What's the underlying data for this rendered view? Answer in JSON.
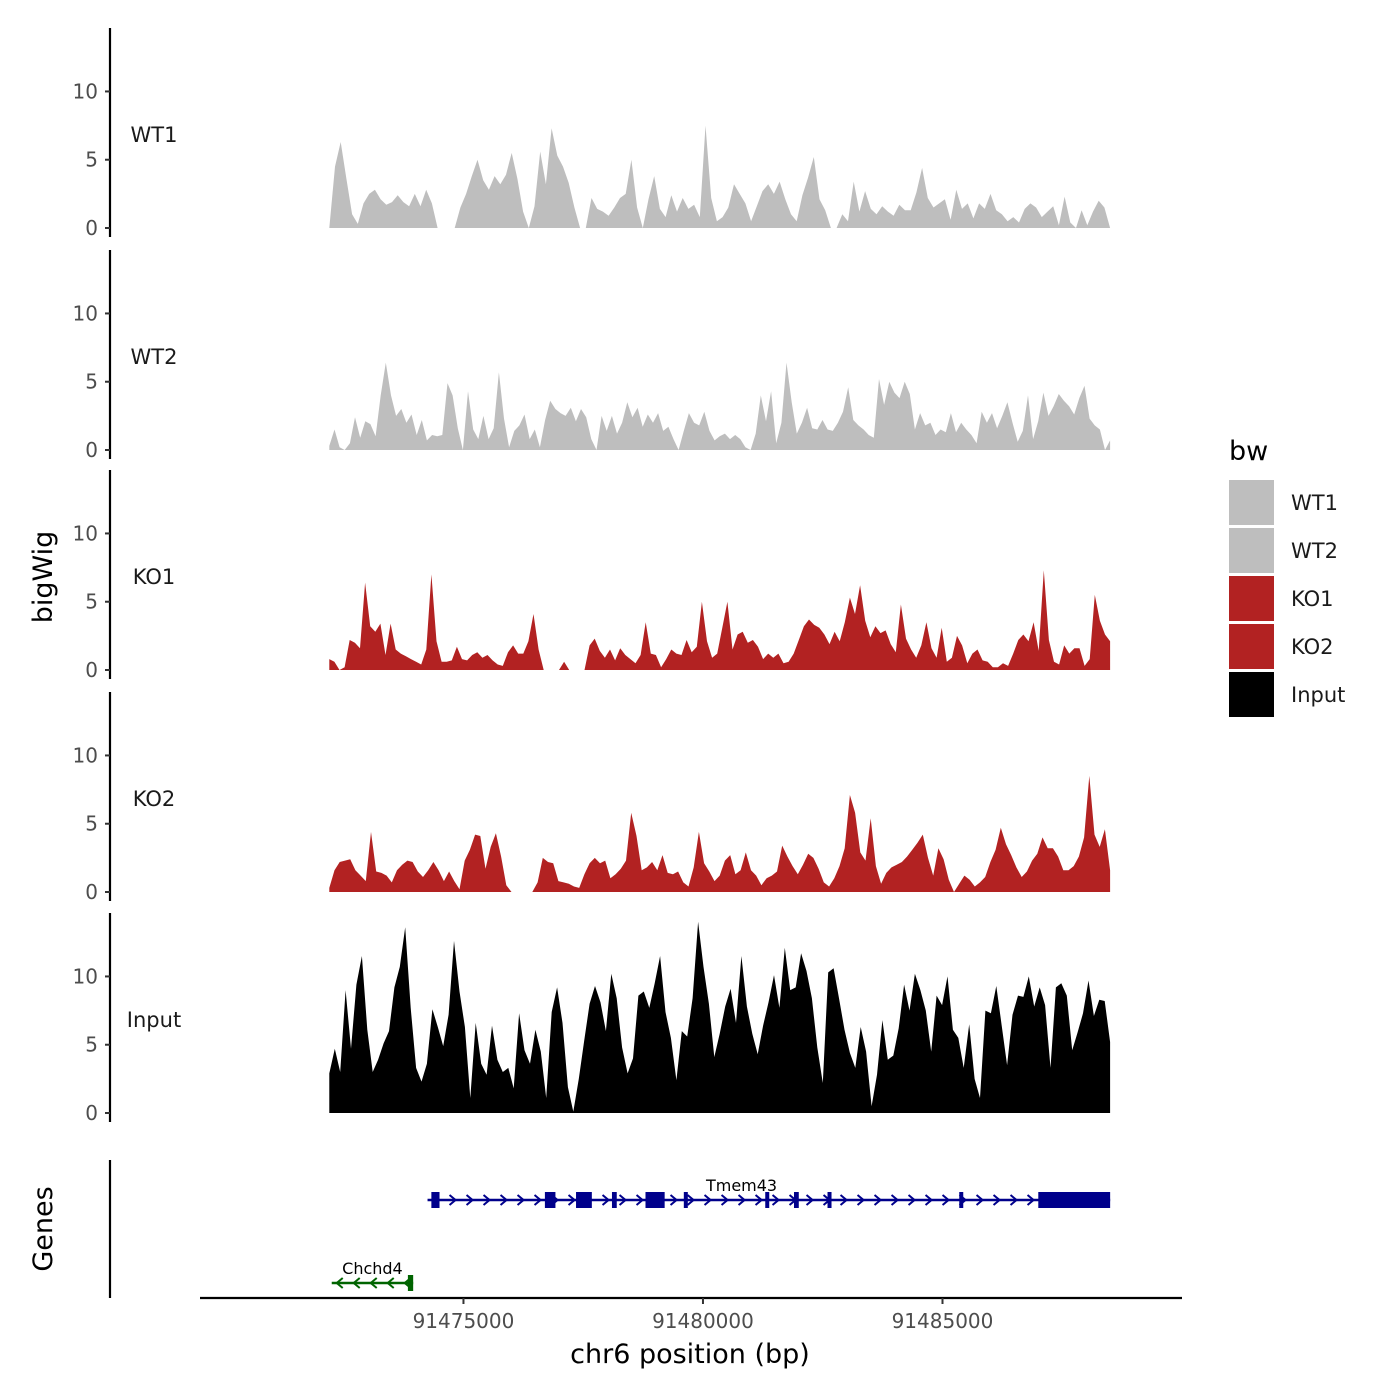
{
  "chart_data": {
    "type": "area",
    "y_axis_title": "bigWig",
    "x_axis_title": "chr6 position (bp)",
    "genes_axis_title": "Genes",
    "legend_title": "bw",
    "ylim": [
      0,
      14.5
    ],
    "y_ticks": [
      0,
      5,
      10
    ],
    "xlim": [
      91469500,
      91490000
    ],
    "x_ticks": [
      91475000,
      91480000,
      91485000
    ],
    "track_x_range": [
      91472200,
      91488500
    ],
    "series": [
      {
        "name": "WT1",
        "color": "#BEBEBE",
        "values": [
          0,
          4.5,
          6.3,
          3.6,
          1,
          0.3,
          1.8,
          2.5,
          2.8,
          2.1,
          1.7,
          1.9,
          2.4,
          1.9,
          1.6,
          2.5,
          1.6,
          2.8,
          1.8,
          0,
          0,
          0,
          0,
          1.5,
          2.5,
          3.8,
          5,
          3.5,
          2.8,
          3.8,
          3.2,
          3.9,
          5.5,
          3.6,
          1.2,
          0,
          1.6,
          5.6,
          3.2,
          7.3,
          5.3,
          4.5,
          3.3,
          1.5,
          0,
          0,
          2.2,
          1.4,
          1.2,
          0.9,
          1.5,
          2.2,
          2.5,
          5,
          1.5,
          0,
          2.1,
          3.8,
          1.4,
          0.8,
          2.4,
          1.2,
          2.2,
          1.4,
          1.7,
          0.8,
          7.5,
          2.2,
          0.5,
          0.8,
          1.5,
          3.2,
          2.5,
          1.8,
          0.5,
          1.6,
          2.7,
          3.2,
          2.5,
          3.4,
          2.1,
          1,
          0.5,
          2.4,
          3.7,
          5.2,
          2.1,
          1.3,
          0,
          0,
          1,
          0.5,
          3.4,
          1.2,
          2.7,
          1.4,
          1,
          1.6,
          1.2,
          0.9,
          1.7,
          1.3,
          1.3,
          2.6,
          4.4,
          2.2,
          1.5,
          1.8,
          2.1,
          0.6,
          2.8,
          1.4,
          1.8,
          0.7,
          1.8,
          1.4,
          2.5,
          1.3,
          1,
          0.5,
          0.8,
          0.4,
          1.4,
          1.8,
          1.5,
          0.8,
          1.2,
          1.6,
          0.2,
          2.3,
          0.4,
          0,
          1.3,
          0.2,
          1.2,
          2,
          1.5,
          0
        ]
      },
      {
        "name": "WT2",
        "color": "#BEBEBE",
        "values": [
          0.3,
          1.5,
          0.2,
          0,
          0.5,
          2.4,
          0.9,
          2.1,
          1.9,
          1,
          4,
          6.4,
          4,
          2.5,
          3,
          2,
          2.6,
          1.1,
          2.2,
          0.7,
          1.1,
          1,
          1.1,
          4.9,
          4,
          1.6,
          0,
          4.3,
          1.5,
          0.8,
          2.5,
          0.8,
          1.6,
          5.7,
          2.3,
          0.2,
          1.4,
          1.8,
          2.6,
          0.8,
          1.5,
          0.2,
          2.2,
          3.6,
          3,
          2.7,
          2.5,
          3.1,
          2.1,
          3,
          2.4,
          0.8,
          0,
          2.5,
          1.4,
          2.5,
          1.2,
          2,
          3.5,
          2.4,
          3.1,
          1.7,
          2.6,
          2,
          2.7,
          1.4,
          1.7,
          0.8,
          0,
          1.4,
          2.7,
          2,
          1.8,
          2.8,
          1.4,
          0.7,
          1,
          1.2,
          0.8,
          1.1,
          0.8,
          0.2,
          0,
          1.2,
          4,
          2.1,
          4.3,
          0.5,
          2,
          6.4,
          3.5,
          1.2,
          2,
          3.1,
          1.6,
          1.5,
          2.2,
          1.5,
          1.4,
          2,
          2.8,
          4.6,
          2.2,
          1.8,
          1.5,
          1.1,
          0.9,
          5.2,
          3.3,
          5,
          4.2,
          3.8,
          5,
          4.1,
          1.5,
          2.7,
          1.8,
          2,
          1.1,
          1.5,
          1.3,
          2.7,
          1.3,
          2,
          1.5,
          1.1,
          0.5,
          2.8,
          2,
          2.7,
          1.6,
          2.5,
          3.5,
          2,
          0.6,
          1.4,
          4,
          0.8,
          2.1,
          4.2,
          2.5,
          3.2,
          4.1,
          3.6,
          3.2,
          2.6,
          3.8,
          4.7,
          2.3,
          1.8,
          1.5,
          0,
          0.7
        ]
      },
      {
        "name": "KO1",
        "color": "#B22222",
        "values": [
          0.8,
          0.6,
          0,
          0.2,
          2.2,
          2,
          1.6,
          6.4,
          3.2,
          2.8,
          3.4,
          1.1,
          3.4,
          1.5,
          1.2,
          1,
          0.8,
          0.6,
          0.4,
          1.5,
          7,
          2.1,
          0.6,
          0.6,
          0.7,
          1.7,
          0.8,
          0.7,
          1.1,
          1.3,
          0.9,
          1.1,
          0.7,
          0.4,
          0.3,
          1.3,
          1.8,
          1.2,
          1.2,
          2.1,
          4.1,
          1.5,
          0,
          0,
          0,
          0,
          0.6,
          0,
          0,
          0,
          0,
          1.8,
          2.3,
          1.4,
          0.9,
          1.5,
          0.7,
          1.6,
          1.1,
          0.8,
          0.5,
          1.1,
          3.5,
          1.2,
          1.1,
          0.2,
          0.8,
          1.5,
          1.2,
          1.1,
          2.2,
          1.3,
          1.7,
          5,
          2.1,
          0.9,
          1.2,
          3.1,
          5,
          1.5,
          2.6,
          2.8,
          2,
          2.2,
          1.7,
          0.8,
          1.2,
          0.9,
          1.2,
          0.5,
          0.6,
          1.2,
          2.2,
          3.2,
          3.7,
          3.3,
          3.1,
          2.6,
          1.9,
          2.8,
          2.1,
          3.5,
          5.3,
          4.1,
          6.2,
          3.6,
          2.4,
          3.2,
          2.7,
          2.9,
          1.9,
          1.3,
          4.8,
          2.3,
          1.5,
          0.9,
          1.8,
          3.5,
          1.6,
          0.9,
          3.1,
          0.6,
          0.9,
          2.5,
          1.8,
          0.5,
          1.2,
          1.5,
          0.7,
          0.6,
          0.2,
          0.2,
          0.5,
          0.3,
          1.2,
          2.2,
          2.6,
          2.1,
          3.5,
          1.4,
          7.3,
          2.2,
          0.6,
          0.4,
          1.8,
          1.2,
          1.6,
          1.6,
          0.3,
          0.8,
          5.5,
          3.6,
          2.6,
          2.1
        ]
      },
      {
        "name": "KO2",
        "color": "#B22222",
        "values": [
          0.3,
          1.6,
          2.2,
          2.3,
          2.4,
          1.6,
          1.2,
          0.8,
          4.4,
          1.5,
          1.4,
          1.2,
          0.7,
          1.6,
          2,
          2.3,
          2.2,
          1.5,
          1.1,
          1.6,
          2.2,
          1.6,
          0.8,
          1.5,
          0.8,
          0.2,
          2.3,
          3.1,
          4.2,
          4.1,
          1.7,
          3.3,
          4.3,
          2.6,
          0.5,
          0,
          0,
          0,
          0,
          0,
          0.7,
          2.5,
          2.2,
          2.1,
          0.8,
          0.7,
          0.6,
          0.4,
          0.3,
          1.3,
          2.1,
          2.5,
          2.1,
          2.3,
          1,
          1.3,
          1.7,
          2.3,
          5.8,
          4.1,
          1.6,
          1.8,
          2.2,
          1.6,
          2.7,
          1.4,
          1.3,
          1.5,
          0.7,
          0.4,
          1.8,
          4.4,
          2.1,
          1.5,
          0.8,
          1.2,
          2.3,
          2.7,
          1.3,
          1.6,
          2.9,
          1.6,
          1.2,
          0.5,
          1,
          1.2,
          1.5,
          3.4,
          2.6,
          1.9,
          1.3,
          2,
          2.8,
          2.5,
          1.7,
          0.7,
          0.4,
          1,
          1.9,
          3.2,
          7.1,
          5.8,
          2.9,
          2.3,
          5.4,
          1.9,
          0.6,
          1.4,
          1.8,
          2,
          2.2,
          2.6,
          3.1,
          3.6,
          4.2,
          2.5,
          1.2,
          3.2,
          2.4,
          0.9,
          0,
          0.6,
          1.2,
          0.9,
          0.4,
          0.7,
          1.1,
          2.2,
          3.1,
          4.7,
          3.5,
          2.7,
          1.8,
          1.1,
          1.5,
          2.3,
          2.8,
          4,
          3.2,
          3.2,
          2.6,
          1.6,
          1.6,
          1.9,
          2.6,
          4,
          8.5,
          4.2,
          3.3,
          4.6,
          1.6
        ]
      },
      {
        "name": "Input",
        "color": "#000000",
        "values": [
          2.9,
          4.7,
          3,
          9,
          4.7,
          9.4,
          11.5,
          6.1,
          3,
          3.9,
          5.1,
          6,
          9.2,
          10.7,
          13.6,
          7.7,
          3.3,
          2.3,
          3.6,
          7.6,
          6.3,
          4.9,
          7.2,
          12.6,
          8.9,
          6.3,
          1.1,
          6.6,
          3.6,
          2.8,
          6.4,
          3.9,
          3,
          3.3,
          1.8,
          7.3,
          4.6,
          3.6,
          6.1,
          4.5,
          1.1,
          7.4,
          9.2,
          6.6,
          1.9,
          0.1,
          2.5,
          5.3,
          8,
          9.3,
          8.1,
          6,
          10.2,
          8.4,
          4.8,
          2.9,
          4,
          8.6,
          8.9,
          7.7,
          9.5,
          11.5,
          7.4,
          5.5,
          2.4,
          6,
          5.6,
          8.4,
          14,
          10.7,
          8,
          4.1,
          5.8,
          7.8,
          9.1,
          6.6,
          11.5,
          7.8,
          5.8,
          4.3,
          6.4,
          8.1,
          10.1,
          7.7,
          12.1,
          9,
          9.2,
          11.7,
          10.4,
          8.4,
          4.8,
          2.2,
          10.3,
          10.6,
          8.4,
          6.1,
          4.4,
          3.3,
          6.3,
          4.5,
          0.5,
          2.8,
          6.8,
          3.9,
          4.2,
          6.2,
          9.4,
          7.5,
          10.2,
          9,
          7.5,
          4.5,
          8.6,
          7.9,
          10,
          6.1,
          5.5,
          3.3,
          6.5,
          2.5,
          1.1,
          7.5,
          7.3,
          9.3,
          6.4,
          3.5,
          7.2,
          8.6,
          8.5,
          10,
          7.8,
          9.2,
          7.9,
          3.3,
          9.2,
          9.5,
          8.6,
          4.6,
          5.9,
          7.3,
          9.7,
          7.1,
          8.3,
          8.2,
          5.2
        ]
      }
    ],
    "gene_track": {
      "genes": [
        {
          "name": "Chchd4",
          "color": "#006400",
          "strand": "-",
          "start": 91472250,
          "end": 91473950,
          "row": 2,
          "exons": [
            [
              91473840,
              91473950
            ]
          ]
        },
        {
          "name": "Tmem43",
          "color": "#00008B",
          "strand": "+",
          "start": 91474250,
          "end": 91488500,
          "row": 1,
          "exons": [
            [
              91474330,
              91474500
            ],
            [
              91476700,
              91476920
            ],
            [
              91477350,
              91477680
            ],
            [
              91478100,
              91478200
            ],
            [
              91478800,
              91479200
            ],
            [
              91479600,
              91479660
            ],
            [
              91481300,
              91481360
            ],
            [
              91481900,
              91482000
            ],
            [
              91482600,
              91482680
            ],
            [
              91485350,
              91485430
            ],
            [
              91487000,
              91488500
            ]
          ]
        }
      ]
    }
  }
}
